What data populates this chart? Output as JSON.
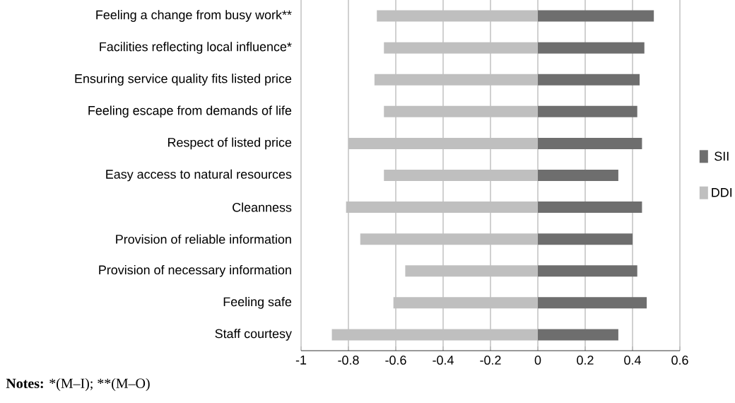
{
  "chart_data": {
    "type": "bar",
    "orientation": "horizontal",
    "stacked": true,
    "categories": [
      "Feeling a change from busy work**",
      "Facilities reflecting local influence*",
      "Ensuring service quality fits listed price",
      "Feeling escape from demands of life",
      "Respect of listed price",
      "Easy access to natural resources",
      "Cleanness",
      "Provision of reliable information",
      "Provision of necessary information",
      "Feeling safe",
      "Staff courtesy"
    ],
    "series": [
      {
        "name": "SII",
        "color": "#6e6e6e",
        "values": [
          0.49,
          0.45,
          0.43,
          0.42,
          0.44,
          0.34,
          0.44,
          0.4,
          0.42,
          0.46,
          0.34
        ]
      },
      {
        "name": "DDI",
        "color": "#bfbfbf",
        "values": [
          -0.68,
          -0.65,
          -0.69,
          -0.65,
          -0.8,
          -0.65,
          -0.81,
          -0.75,
          -0.56,
          -0.61,
          -0.87
        ]
      }
    ],
    "xlim": [
      -1,
      0.6
    ],
    "xticks": [
      -1,
      -0.8,
      -0.6,
      -0.4,
      -0.2,
      0,
      0.2,
      0.4,
      0.6
    ],
    "grid": "x",
    "legend": "right",
    "annotations": [
      "Notes:",
      "*(M–I); **(M–O)"
    ]
  }
}
